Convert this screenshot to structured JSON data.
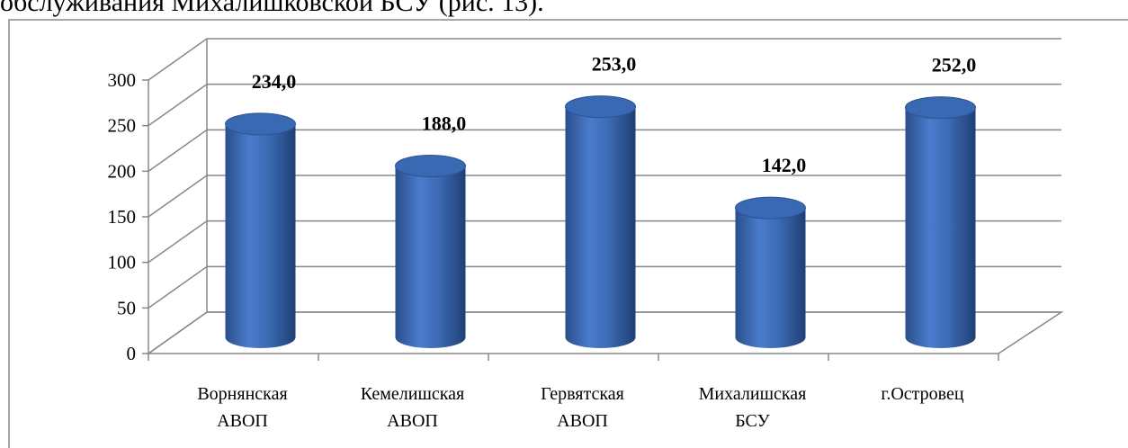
{
  "text_above": "обслуживания Михалишковской БСУ (рис. 13).",
  "chart_data": {
    "type": "bar3d",
    "categories": [
      "Ворнянская\nАВОП",
      "Кемелишская\nАВОП",
      "Гервятская\nАВОП",
      "Михалишская\nБСУ",
      "г.Островец"
    ],
    "values": [
      234,
      188,
      253,
      142,
      252
    ],
    "value_labels": [
      "234,0",
      "188,0",
      "253,0",
      "142,0",
      "252,0"
    ],
    "color": "#3f6fb5",
    "ylim": [
      0,
      300
    ],
    "yticks": [
      0,
      50,
      100,
      150,
      200,
      250,
      300
    ],
    "grid": true
  }
}
